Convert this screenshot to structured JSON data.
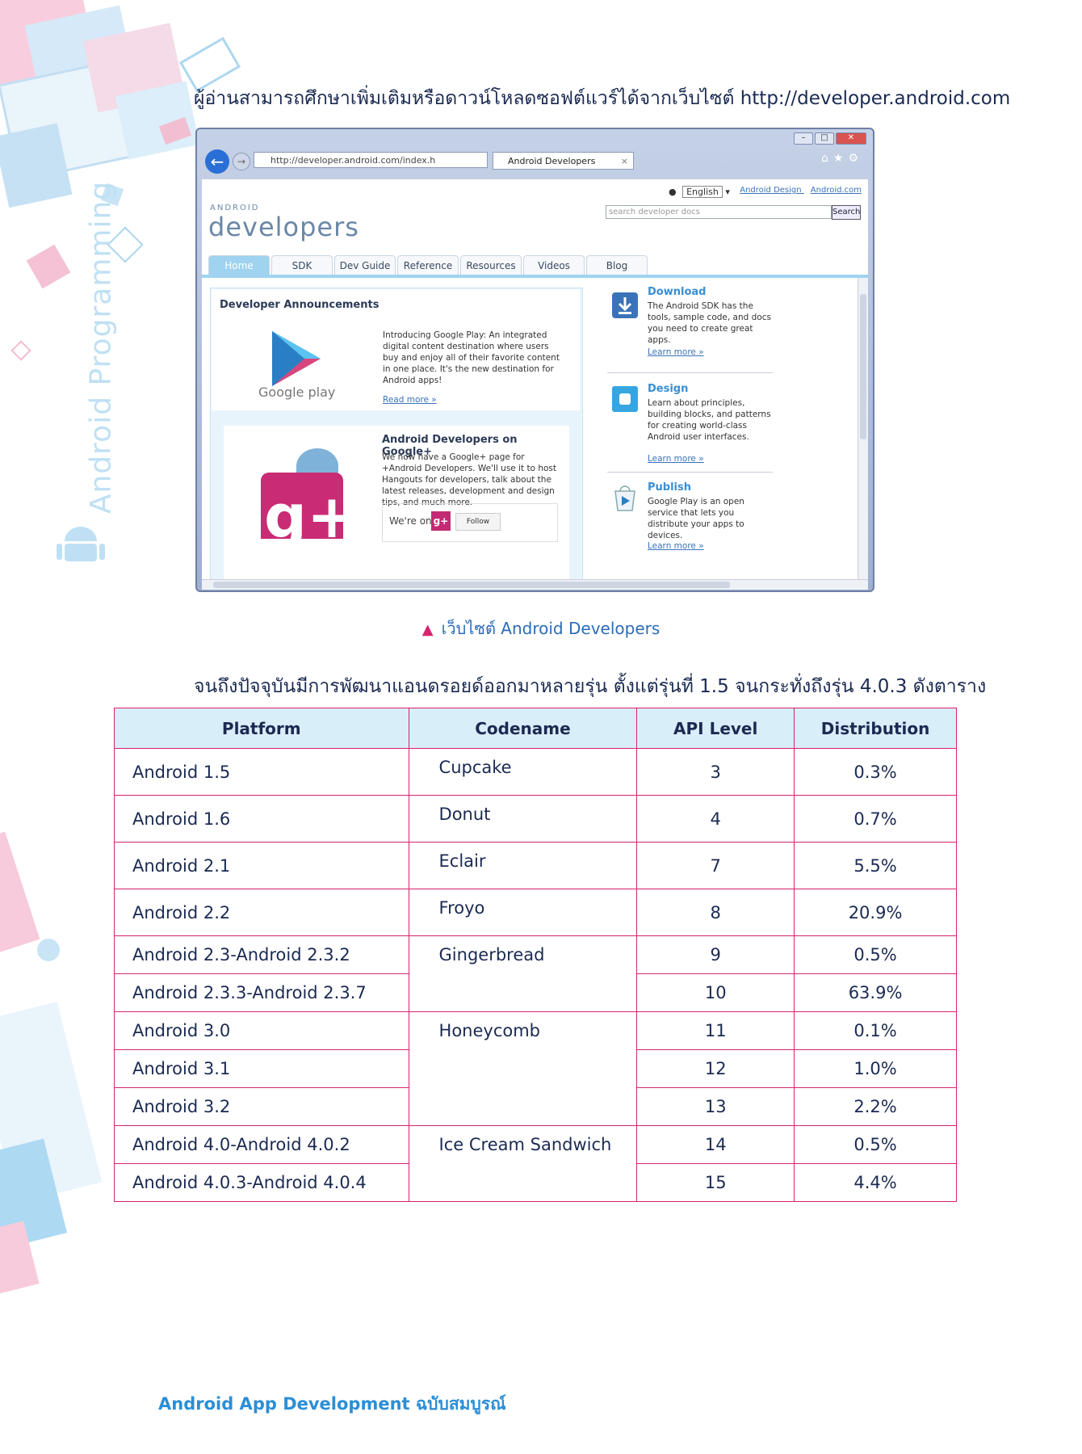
{
  "intro_line": "ผู้อ่านสามารถศึกษาเพิ่มเติมหรือดาวน์โหลดซอฟต์แวร์ได้จากเว็บไซต์ http://developer.android.com",
  "side_title": "Android Programming",
  "browser": {
    "address": "http://developer.android.com/index.h",
    "tab_title": "Android Developers",
    "language": "English",
    "top_links": [
      "Android Design",
      "Android.com"
    ],
    "logo_small": "ANDROID",
    "logo_big": "developers",
    "search_placeholder": "search developer docs",
    "search_button": "Search",
    "tabs": [
      "Home",
      "SDK",
      "Dev Guide",
      "Reference",
      "Resources",
      "Videos",
      "Blog"
    ],
    "announcements": {
      "title": "Developer Announcements",
      "gp_label": "Google play",
      "text": "Introducing Google Play: An integrated digital content destination where users buy and enjoy all of their favorite content in one place. It's the new destination for Android apps!",
      "link": "Read more »"
    },
    "gplus": {
      "title": "Android Developers on Google+",
      "text": "We now have a Google+ page for +Android Developers. We'll use it to host Hangouts for developers, talk about the latest releases, development and design tips, and much more.",
      "we_are_on": "We're on",
      "follow": "Follow"
    },
    "side": [
      {
        "title": "Download",
        "text": "The Android SDK has the tools, sample code, and docs you need to create great apps.",
        "link": "Learn more »"
      },
      {
        "title": "Design",
        "text": "Learn about principles, building blocks, and patterns for creating world-class Android user interfaces.",
        "link": "Learn more »"
      },
      {
        "title": "Publish",
        "text": "Google Play is an open service that lets you distribute your apps to devices.",
        "link": "Learn more »"
      }
    ]
  },
  "caption": "เว็บไซต์ Android Developers",
  "intro_line2": "จนถึงปัจจุบันมีการพัฒนาแอนดรอยด์ออกมาหลายรุ่น ตั้งแต่รุ่นที่ 1.5 จนกระทั่งถึงรุ่น 4.0.3 ดังตาราง",
  "table": {
    "headers": [
      "Platform",
      "Codename",
      "API Level",
      "Distribution"
    ],
    "rows": [
      {
        "platform": "Android 1.5",
        "codename": "Cupcake",
        "api": "3",
        "dist": "0.3%"
      },
      {
        "platform": "Android 1.6",
        "codename": "Donut",
        "api": "4",
        "dist": "0.7%"
      },
      {
        "platform": "Android 2.1",
        "codename": "Eclair",
        "api": "7",
        "dist": "5.5%"
      },
      {
        "platform": "Android 2.2",
        "codename": "Froyo",
        "api": "8",
        "dist": "20.9%"
      },
      {
        "platform": "Android 2.3-Android 2.3.2",
        "codename": "Gingerbread",
        "api": "9",
        "dist": "0.5%"
      },
      {
        "platform": "Android 2.3.3-Android 2.3.7",
        "codename": "",
        "api": "10",
        "dist": "63.9%"
      },
      {
        "platform": "Android 3.0",
        "codename": "Honeycomb",
        "api": "11",
        "dist": "0.1%"
      },
      {
        "platform": "Android 3.1",
        "codename": "",
        "api": "12",
        "dist": "1.0%"
      },
      {
        "platform": "Android 3.2",
        "codename": "",
        "api": "13",
        "dist": "2.2%"
      },
      {
        "platform": "Android 4.0-Android 4.0.2",
        "codename": "Ice Cream Sandwich",
        "api": "14",
        "dist": "0.5%"
      },
      {
        "platform": "Android 4.0.3-Android 4.0.4",
        "codename": "",
        "api": "15",
        "dist": "4.4%"
      }
    ]
  },
  "footer": "Android App Development ฉบับสมบูรณ์"
}
